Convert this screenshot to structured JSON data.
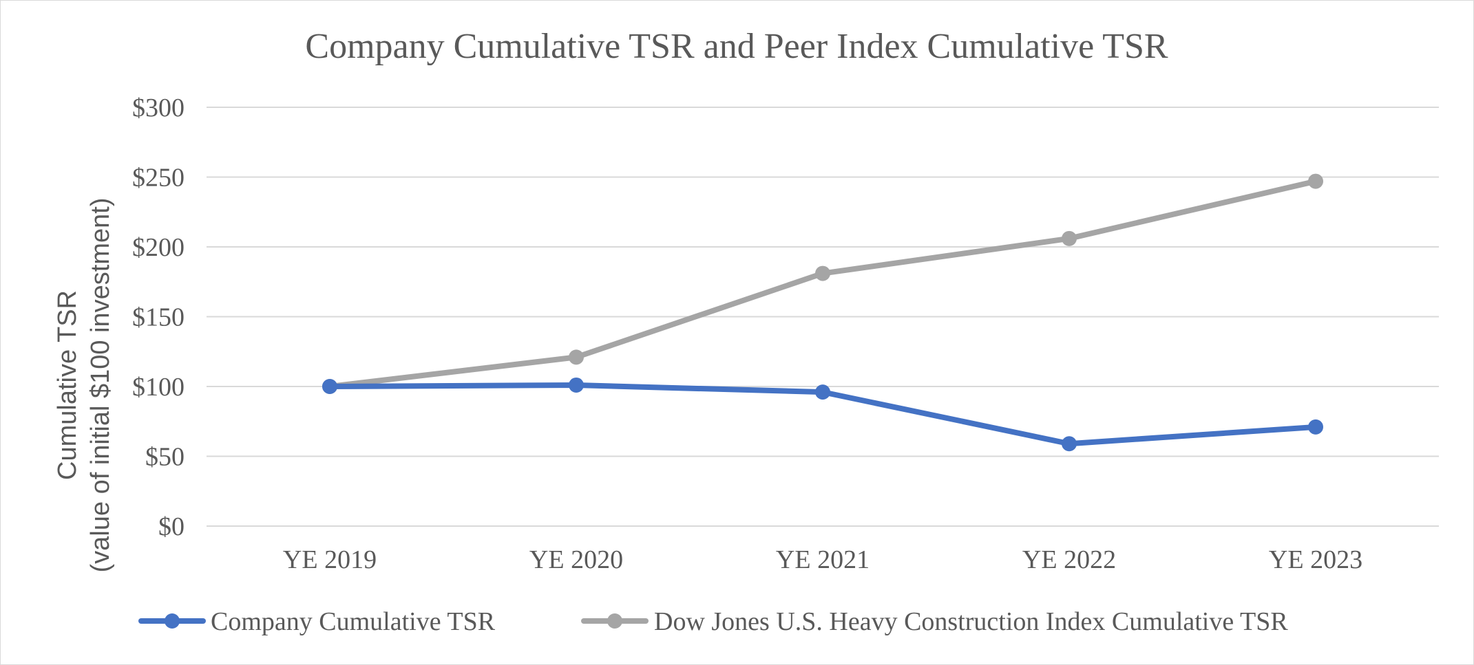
{
  "chart_data": {
    "type": "line",
    "title": "Company Cumulative TSR and Peer Index Cumulative TSR",
    "ylabel_lines": [
      "Cumulative TSR",
      "(value of initial $100 investment)"
    ],
    "xlabel": "",
    "categories": [
      "YE 2019",
      "YE 2020",
      "YE 2021",
      "YE 2022",
      "YE 2023"
    ],
    "ylim": [
      0,
      300
    ],
    "yticks": [
      0,
      50,
      100,
      150,
      200,
      250,
      300
    ],
    "ytick_labels": [
      "$0",
      "$50",
      "$100",
      "$150",
      "$200",
      "$250",
      "$300"
    ],
    "grid": "horizontal",
    "legend_position": "bottom",
    "series": [
      {
        "name": "Company Cumulative TSR",
        "values": [
          100,
          101,
          96,
          59,
          71
        ],
        "color": "#4472c4",
        "marker": "circle"
      },
      {
        "name": "Dow Jones U.S. Heavy Construction Index Cumulative TSR",
        "values": [
          100,
          121,
          181,
          206,
          247
        ],
        "color": "#a5a5a5",
        "marker": "circle"
      }
    ],
    "colors": {
      "grid": "#d9d9d9",
      "text": "#595959",
      "frame": "#d9d9d9"
    }
  }
}
